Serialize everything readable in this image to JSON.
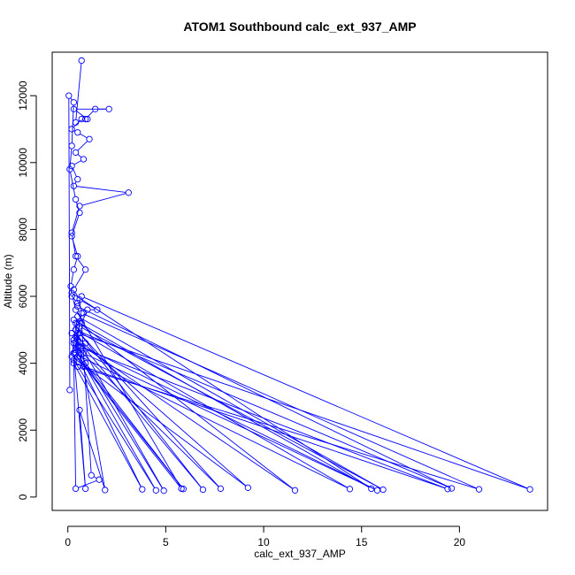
{
  "chart_data": {
    "type": "scatter",
    "title": "ATOM1 Southbound calc_ext_937_AMP",
    "xlabel": "calc_ext_937_AMP",
    "ylabel": "Altitude (m)",
    "xlim": [
      -0.8,
      24.5
    ],
    "ylim": [
      -400,
      13300
    ],
    "xticks": [
      0,
      5,
      10,
      15,
      20
    ],
    "yticks": [
      0,
      2000,
      4000,
      6000,
      8000,
      10000,
      12000
    ],
    "connected": true,
    "color": "#0000ff",
    "series": [
      {
        "points": [
          [
            0.1,
            3200
          ],
          [
            0.05,
            12000
          ],
          [
            0.3,
            11800
          ],
          [
            0.2,
            10500
          ],
          [
            0.1,
            9800
          ],
          [
            0.4,
            8900
          ],
          [
            0.6,
            8500
          ],
          [
            0.2,
            7800
          ],
          [
            0.5,
            7200
          ],
          [
            0.3,
            6800
          ],
          [
            0.15,
            6300
          ],
          [
            0.2,
            6000
          ],
          [
            0.5,
            5800
          ],
          [
            0.8,
            5500
          ],
          [
            0.4,
            5200
          ],
          [
            0.2,
            4900
          ],
          [
            0.9,
            4600
          ],
          [
            0.3,
            4300
          ],
          [
            5.8,
            250
          ],
          [
            0.4,
            5600
          ],
          [
            0.2,
            6100
          ],
          [
            15.5,
            250
          ],
          [
            0.3,
            5300
          ],
          [
            0.5,
            4900
          ],
          [
            23.6,
            230
          ],
          [
            0.7,
            6000
          ],
          [
            0.5,
            5700
          ],
          [
            19.6,
            260
          ],
          [
            0.4,
            5000
          ],
          [
            0.3,
            4600
          ],
          [
            0.2,
            4200
          ],
          [
            9.2,
            280
          ],
          [
            0.4,
            4800
          ],
          [
            0.6,
            5100
          ],
          [
            16.1,
            220
          ],
          [
            0.5,
            5400
          ],
          [
            0.3,
            4700
          ],
          [
            11.6,
            200
          ],
          [
            0.6,
            5200
          ],
          [
            0.4,
            4400
          ],
          [
            4.5,
            200
          ],
          [
            0.3,
            4100
          ],
          [
            0.5,
            3900
          ],
          [
            21.0,
            230
          ],
          [
            0.7,
            5500
          ],
          [
            0.4,
            4500
          ],
          [
            7.8,
            250
          ],
          [
            0.6,
            4900
          ],
          [
            0.3,
            4300
          ],
          [
            14.4,
            240
          ],
          [
            0.4,
            5000
          ],
          [
            0.5,
            4700
          ],
          [
            6.9,
            220
          ],
          [
            0.6,
            4900
          ],
          [
            0.4,
            4300
          ],
          [
            3.8,
            230
          ],
          [
            0.3,
            4000
          ],
          [
            19.4,
            240
          ],
          [
            0.5,
            4500
          ],
          [
            0.8,
            4300
          ],
          [
            15.8,
            200
          ],
          [
            0.4,
            4600
          ],
          [
            0.9,
            4000
          ],
          [
            5.9,
            240
          ],
          [
            0.5,
            4200
          ],
          [
            0.7,
            4500
          ],
          [
            4.9,
            190
          ],
          [
            0.6,
            4300
          ],
          [
            0.8,
            3900
          ],
          [
            1.9,
            210
          ],
          [
            0.6,
            2600
          ],
          [
            0.9,
            250
          ],
          [
            0.3,
            4300
          ],
          [
            0.4,
            250
          ],
          [
            1.6,
            520
          ],
          [
            1.2,
            650
          ],
          [
            0.7,
            5200
          ],
          [
            1.0,
            5600
          ],
          [
            1.5,
            5600
          ],
          [
            0.6,
            5900
          ],
          [
            0.3,
            6200
          ],
          [
            0.9,
            6800
          ],
          [
            0.4,
            7200
          ],
          [
            0.2,
            7900
          ],
          [
            0.6,
            8700
          ],
          [
            3.1,
            9100
          ],
          [
            0.3,
            9300
          ],
          [
            0.5,
            9500
          ],
          [
            0.2,
            9900
          ],
          [
            0.8,
            10100
          ],
          [
            0.4,
            10300
          ],
          [
            1.1,
            10700
          ],
          [
            0.5,
            10900
          ],
          [
            0.2,
            11000
          ],
          [
            0.7,
            11300
          ],
          [
            1.0,
            11300
          ],
          [
            0.3,
            11600
          ],
          [
            2.1,
            11600
          ],
          [
            1.4,
            11600
          ],
          [
            0.9,
            11300
          ],
          [
            0.4,
            11200
          ],
          [
            0.7,
            13050
          ]
        ]
      }
    ]
  }
}
